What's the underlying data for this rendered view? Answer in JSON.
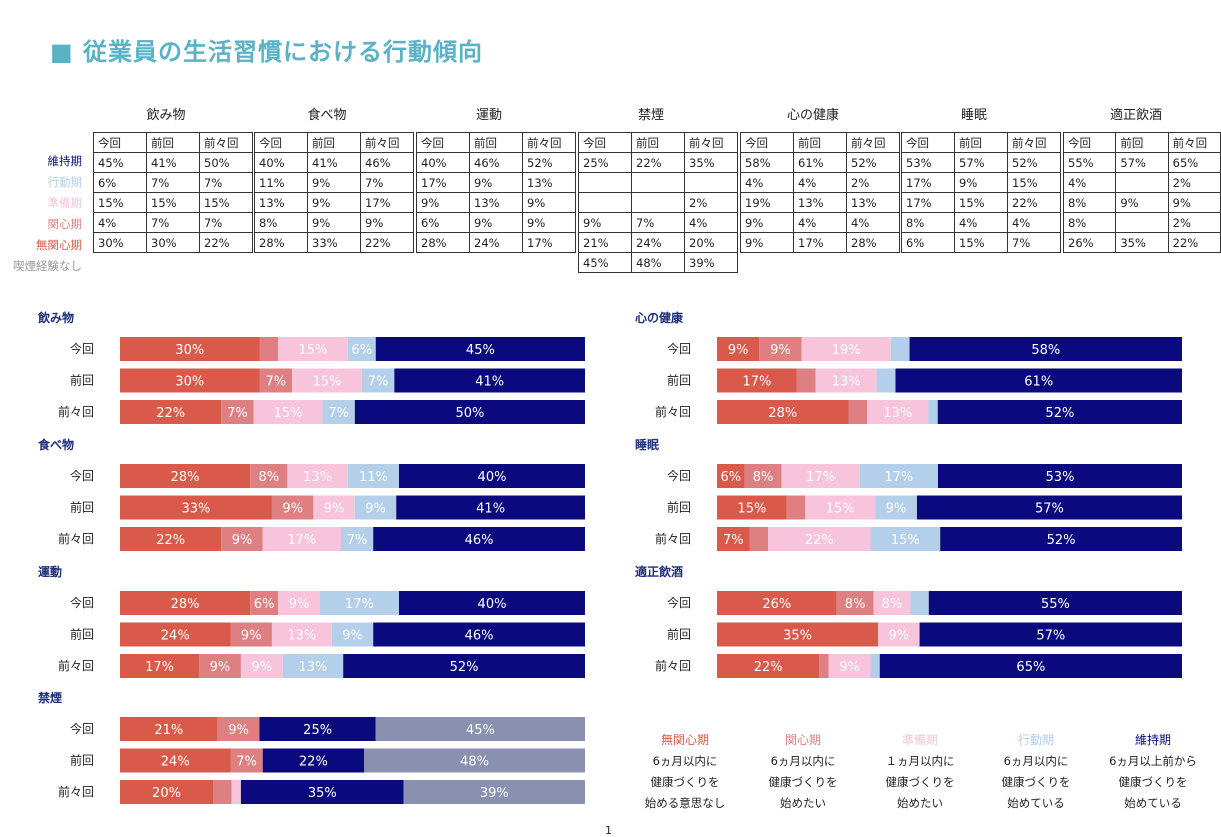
{
  "title": "■ 従業員の生活習慣における行動傾向",
  "page_number": "1",
  "colors": {
    "無関心期": "#d95a4a",
    "関心期": "#de7f82",
    "準備期": "#f7c4dc",
    "行動期": "#b3cfea",
    "維持期": "#0a0a7e",
    "喫煙経験なし": "#8a90b0"
  },
  "table": {
    "col_headers": [
      "今回",
      "前回",
      "前々回"
    ],
    "row_labels": [
      "維持期",
      "行動期",
      "準備期",
      "関心期",
      "無関心期",
      "喫煙経験なし"
    ],
    "categories": [
      {
        "name": "飲み物",
        "rows": [
          [
            "45%",
            "41%",
            "50%"
          ],
          [
            "6%",
            "7%",
            "7%"
          ],
          [
            "15%",
            "15%",
            "15%"
          ],
          [
            "4%",
            "7%",
            "7%"
          ],
          [
            "30%",
            "30%",
            "22%"
          ]
        ]
      },
      {
        "name": "食べ物",
        "rows": [
          [
            "40%",
            "41%",
            "46%"
          ],
          [
            "11%",
            "9%",
            "7%"
          ],
          [
            "13%",
            "9%",
            "17%"
          ],
          [
            "8%",
            "9%",
            "9%"
          ],
          [
            "28%",
            "33%",
            "22%"
          ]
        ]
      },
      {
        "name": "運動",
        "rows": [
          [
            "40%",
            "46%",
            "52%"
          ],
          [
            "17%",
            "9%",
            "13%"
          ],
          [
            "9%",
            "13%",
            "9%"
          ],
          [
            "6%",
            "9%",
            "9%"
          ],
          [
            "28%",
            "24%",
            "17%"
          ]
        ]
      },
      {
        "name": "禁煙",
        "rows": [
          [
            "25%",
            "22%",
            "35%"
          ],
          [
            "",
            "",
            ""
          ],
          [
            "",
            "",
            "2%"
          ],
          [
            "9%",
            "7%",
            "4%"
          ],
          [
            "21%",
            "24%",
            "20%"
          ],
          [
            "45%",
            "48%",
            "39%"
          ]
        ]
      },
      {
        "name": "心の健康",
        "rows": [
          [
            "58%",
            "61%",
            "52%"
          ],
          [
            "4%",
            "4%",
            "2%"
          ],
          [
            "19%",
            "13%",
            "13%"
          ],
          [
            "9%",
            "4%",
            "4%"
          ],
          [
            "9%",
            "17%",
            "28%"
          ]
        ]
      },
      {
        "name": "睡眠",
        "rows": [
          [
            "53%",
            "57%",
            "52%"
          ],
          [
            "17%",
            "9%",
            "15%"
          ],
          [
            "17%",
            "15%",
            "22%"
          ],
          [
            "8%",
            "4%",
            "4%"
          ],
          [
            "6%",
            "15%",
            "7%"
          ]
        ]
      },
      {
        "name": "適正飲酒",
        "rows": [
          [
            "55%",
            "57%",
            "65%"
          ],
          [
            "4%",
            "",
            "2%"
          ],
          [
            "8%",
            "9%",
            "9%"
          ],
          [
            "8%",
            "",
            "2%"
          ],
          [
            "26%",
            "35%",
            "22%"
          ]
        ]
      }
    ]
  },
  "chart_data": [
    {
      "type": "bar",
      "orientation": "horizontal",
      "stacked": true,
      "title": "飲み物",
      "categories": [
        "今回",
        "前回",
        "前々回"
      ],
      "series": [
        {
          "name": "無関心期",
          "values": [
            30,
            30,
            22
          ]
        },
        {
          "name": "関心期",
          "values": [
            4,
            7,
            7
          ]
        },
        {
          "name": "準備期",
          "values": [
            15,
            15,
            15
          ]
        },
        {
          "name": "行動期",
          "values": [
            6,
            7,
            7
          ]
        },
        {
          "name": "維持期",
          "values": [
            45,
            41,
            50
          ]
        }
      ]
    },
    {
      "type": "bar",
      "orientation": "horizontal",
      "stacked": true,
      "title": "食べ物",
      "categories": [
        "今回",
        "前回",
        "前々回"
      ],
      "series": [
        {
          "name": "無関心期",
          "values": [
            28,
            33,
            22
          ]
        },
        {
          "name": "関心期",
          "values": [
            8,
            9,
            9
          ]
        },
        {
          "name": "準備期",
          "values": [
            13,
            9,
            17
          ]
        },
        {
          "name": "行動期",
          "values": [
            11,
            9,
            7
          ]
        },
        {
          "name": "維持期",
          "values": [
            40,
            41,
            46
          ]
        }
      ]
    },
    {
      "type": "bar",
      "orientation": "horizontal",
      "stacked": true,
      "title": "運動",
      "categories": [
        "今回",
        "前回",
        "前々回"
      ],
      "series": [
        {
          "name": "無関心期",
          "values": [
            28,
            24,
            17
          ]
        },
        {
          "name": "関心期",
          "values": [
            6,
            9,
            9
          ]
        },
        {
          "name": "準備期",
          "values": [
            9,
            13,
            9
          ]
        },
        {
          "name": "行動期",
          "values": [
            17,
            9,
            13
          ]
        },
        {
          "name": "維持期",
          "values": [
            40,
            46,
            52
          ]
        }
      ]
    },
    {
      "type": "bar",
      "orientation": "horizontal",
      "stacked": true,
      "title": "禁煙",
      "categories": [
        "今回",
        "前回",
        "前々回"
      ],
      "series": [
        {
          "name": "無関心期",
          "values": [
            21,
            24,
            20
          ]
        },
        {
          "name": "関心期",
          "values": [
            9,
            7,
            4
          ]
        },
        {
          "name": "準備期",
          "values": [
            0,
            0,
            2
          ]
        },
        {
          "name": "行動期",
          "values": [
            0,
            0,
            0
          ]
        },
        {
          "name": "維持期",
          "values": [
            25,
            22,
            35
          ]
        },
        {
          "name": "喫煙経験なし",
          "values": [
            45,
            48,
            39
          ]
        }
      ]
    },
    {
      "type": "bar",
      "orientation": "horizontal",
      "stacked": true,
      "title": "心の健康",
      "categories": [
        "今回",
        "前回",
        "前々回"
      ],
      "series": [
        {
          "name": "無関心期",
          "values": [
            9,
            17,
            28
          ]
        },
        {
          "name": "関心期",
          "values": [
            9,
            4,
            4
          ]
        },
        {
          "name": "準備期",
          "values": [
            19,
            13,
            13
          ]
        },
        {
          "name": "行動期",
          "values": [
            4,
            4,
            2
          ]
        },
        {
          "name": "維持期",
          "values": [
            58,
            61,
            52
          ]
        }
      ]
    },
    {
      "type": "bar",
      "orientation": "horizontal",
      "stacked": true,
      "title": "睡眠",
      "categories": [
        "今回",
        "前回",
        "前々回"
      ],
      "series": [
        {
          "name": "無関心期",
          "values": [
            6,
            15,
            7
          ]
        },
        {
          "name": "関心期",
          "values": [
            8,
            4,
            4
          ]
        },
        {
          "name": "準備期",
          "values": [
            17,
            15,
            22
          ]
        },
        {
          "name": "行動期",
          "values": [
            17,
            9,
            15
          ]
        },
        {
          "name": "維持期",
          "values": [
            53,
            57,
            52
          ]
        }
      ]
    },
    {
      "type": "bar",
      "orientation": "horizontal",
      "stacked": true,
      "title": "適正飲酒",
      "categories": [
        "今回",
        "前回",
        "前々回"
      ],
      "series": [
        {
          "name": "無関心期",
          "values": [
            26,
            35,
            22
          ]
        },
        {
          "name": "関心期",
          "values": [
            8,
            0,
            2
          ]
        },
        {
          "name": "準備期",
          "values": [
            8,
            9,
            9
          ]
        },
        {
          "name": "行動期",
          "values": [
            4,
            0,
            2
          ]
        },
        {
          "name": "維持期",
          "values": [
            55,
            57,
            65
          ]
        }
      ]
    }
  ],
  "legend": [
    {
      "name": "無関心期",
      "desc": [
        "6ヵ月以内に",
        "健康づくりを",
        "始める意思なし"
      ]
    },
    {
      "name": "関心期",
      "desc": [
        "6ヵ月以内に",
        "健康づくりを",
        "始めたい"
      ]
    },
    {
      "name": "準備期",
      "desc": [
        "１ヵ月以内に",
        "健康づくりを",
        "始めたい"
      ]
    },
    {
      "name": "行動期",
      "desc": [
        "6ヵ月以内に",
        "健康づくりを",
        "始めている"
      ]
    },
    {
      "name": "維持期",
      "desc": [
        "6ヵ月以上前から",
        "健康づくりを",
        "始めている"
      ]
    }
  ]
}
